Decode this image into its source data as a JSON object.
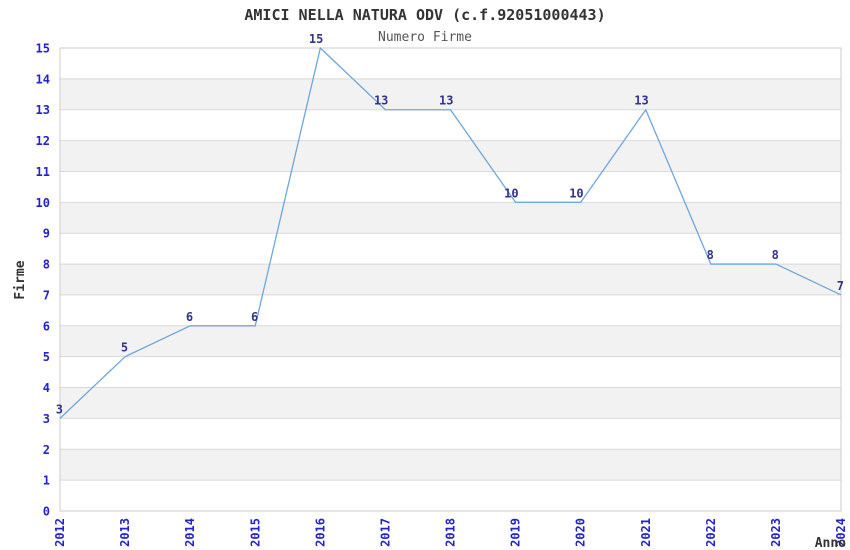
{
  "chart_data": {
    "type": "line",
    "title": "AMICI NELLA NATURA ODV (c.f.92051000443)",
    "subtitle": "Numero Firme",
    "xlabel": "Anno",
    "ylabel": "Firme",
    "categories": [
      "2012",
      "2013",
      "2014",
      "2015",
      "2016",
      "2017",
      "2018",
      "2019",
      "2020",
      "2021",
      "2022",
      "2023",
      "2024"
    ],
    "series": [
      {
        "name": "Numero Firme",
        "values": [
          3,
          5,
          6,
          6,
          15,
          13,
          13,
          10,
          10,
          13,
          8,
          8,
          7
        ]
      }
    ],
    "ylim": [
      0,
      15
    ],
    "ytick_step": 1,
    "grid": "horizontal-gridlines-with-alternating-bands",
    "legend": "none",
    "data_labels": "shown-above-left-of-points",
    "colors": {
      "line": "#6ea6dd",
      "tick_label": "#2323cc",
      "data_label": "#333388",
      "title": "#333333",
      "subtitle": "#555555",
      "axis_title": "#333333",
      "band": "#f2f2f2",
      "gridline": "#d9d9d9",
      "border": "#cccccc",
      "background": "#ffffff"
    }
  }
}
